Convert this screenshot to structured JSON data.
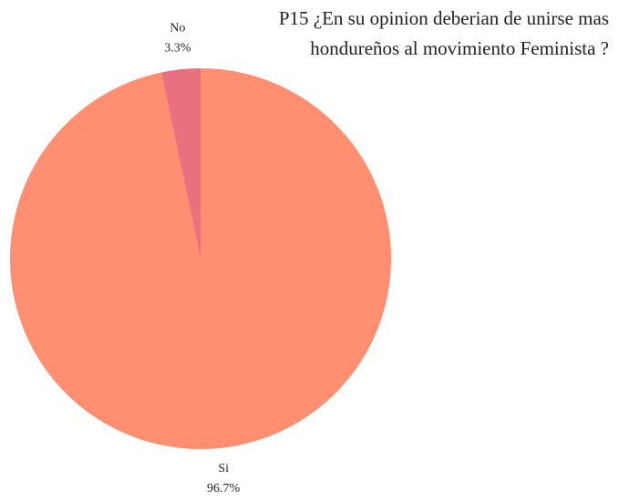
{
  "chart_data": {
    "type": "pie",
    "title_lines": [
      "P15 ¿En su opinion deberian de unirse mas",
      "hondureños al movimiento Feminista ?"
    ],
    "categories": [
      "Si",
      "No"
    ],
    "values": [
      96.7,
      3.3
    ],
    "value_labels": [
      "96.7%",
      "3.3%"
    ],
    "colors": [
      "#ff8f70",
      "#e8707f"
    ]
  }
}
